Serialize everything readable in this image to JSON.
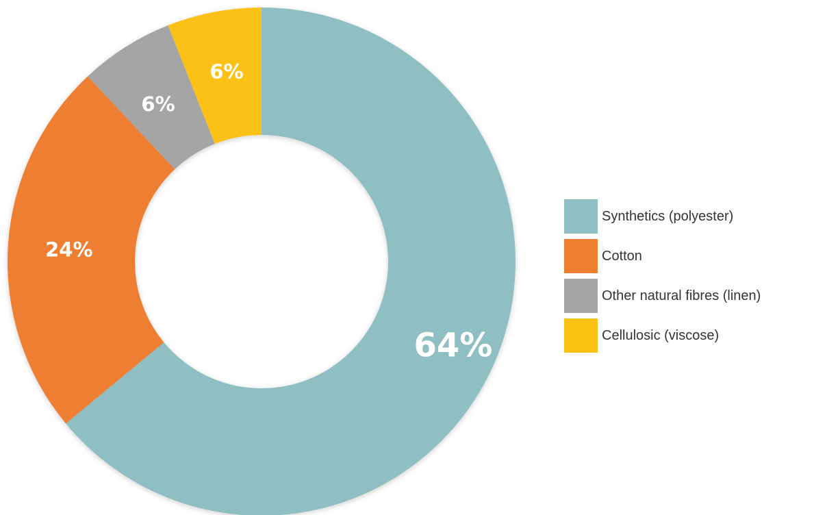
{
  "chart_data": {
    "type": "pie",
    "donut": true,
    "categories": [
      "Synthetics (polyester)",
      "Cotton",
      "Other natural fibres (linen)",
      "Cellulosic (viscose)"
    ],
    "values": [
      64,
      24,
      6,
      6
    ],
    "value_labels": [
      "64%",
      "24%",
      "6%",
      "6%"
    ],
    "colors": [
      "#8fbfc2",
      "#ee7f30",
      "#a5a5a5",
      "#fbc115"
    ],
    "legend_position": "right",
    "start": "top",
    "direction": "clockwise"
  }
}
